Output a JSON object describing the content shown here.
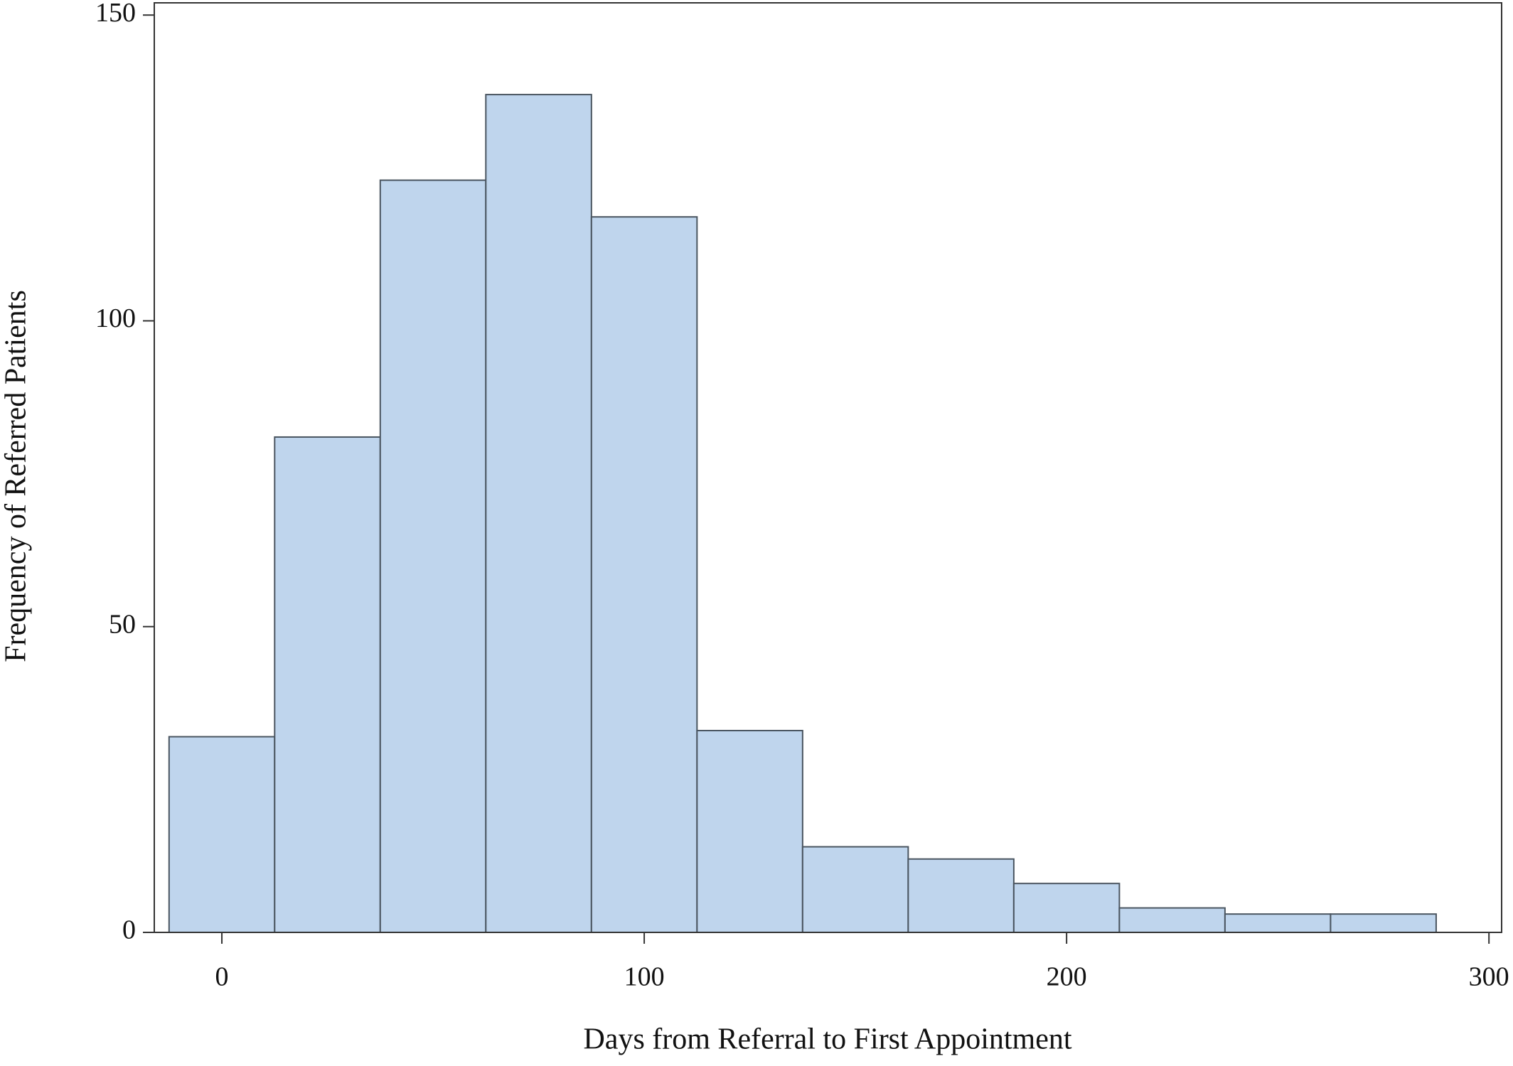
{
  "chart_data": {
    "type": "histogram",
    "x_label": "Days from Referral to First Appointment",
    "y_label": "Frequency of Referred Patients",
    "bins": [
      -12.5,
      12.5,
      37.5,
      62.5,
      87.5,
      112.5,
      137.5,
      162.5,
      187.5,
      212.5,
      237.5,
      262.5,
      287.5
    ],
    "values": [
      32,
      81,
      123,
      137,
      117,
      33,
      14,
      12,
      8,
      4,
      3,
      3
    ],
    "color": "#bfd5ed",
    "xlim": [
      -16,
      303
    ],
    "xticks": [
      0,
      100,
      200,
      300
    ],
    "ylim": [
      0,
      152
    ],
    "yticks": [
      0,
      50,
      100,
      150
    ]
  }
}
